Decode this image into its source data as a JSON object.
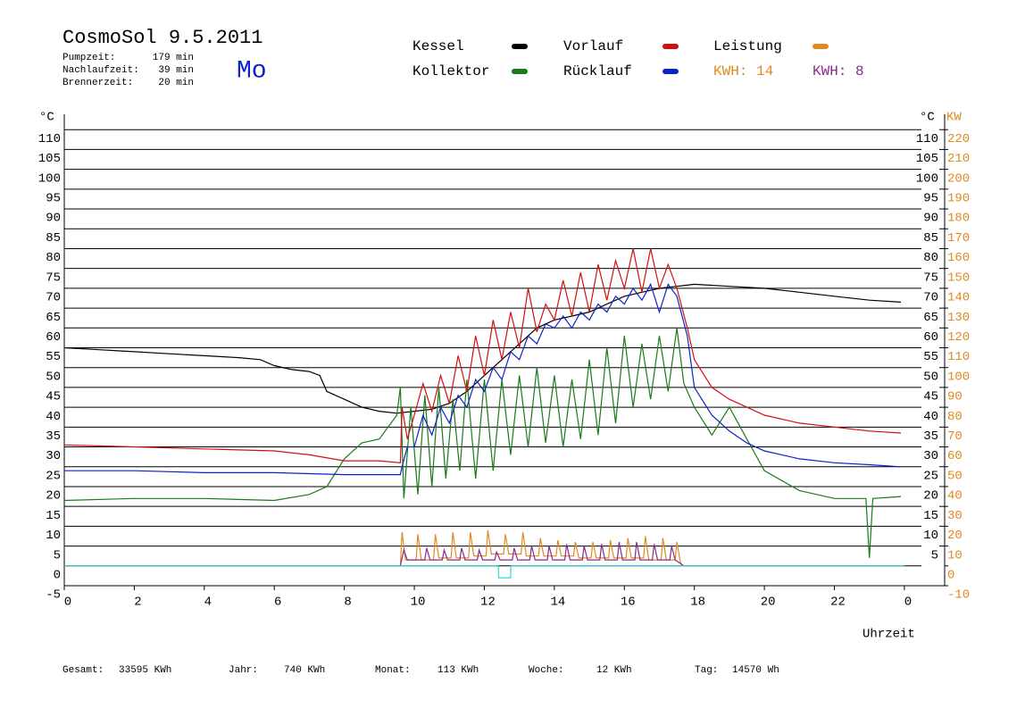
{
  "chart_data": {
    "type": "line",
    "title": "CosmoSol 9.5.2011",
    "day": "Mo",
    "info": [
      {
        "label": "Pumpzeit:",
        "value": "179 min"
      },
      {
        "label": "Nachlaufzeit:",
        "value": "39 min"
      },
      {
        "label": "Brennerzeit:",
        "value": "20 min"
      }
    ],
    "footer": [
      {
        "label": "Gesamt:",
        "value": "33595 KWh"
      },
      {
        "label": "Jahr:",
        "value": "740 KWh"
      },
      {
        "label": "Monat:",
        "value": "113 KWh"
      },
      {
        "label": "Woche:",
        "value": "12 KWh"
      },
      {
        "label": "Tag:",
        "value": "14570 Wh"
      }
    ],
    "annotations": [
      {
        "text": "KWH: 14",
        "color": "#e08a1e"
      },
      {
        "text": "KWH: 8",
        "color": "#8b2a8b"
      }
    ],
    "ylabel": "°C",
    "y2label": "KW",
    "xlabel": "Uhrzeit",
    "xlim": [
      0,
      25.15
    ],
    "xticks": [
      0,
      2,
      4,
      6,
      8,
      10,
      12,
      14,
      16,
      18,
      20,
      22,
      {
        "value": 24,
        "label": "0"
      }
    ],
    "ylim": [
      -5,
      115
    ],
    "yticks": [
      -5,
      0,
      5,
      10,
      15,
      20,
      25,
      30,
      35,
      40,
      45,
      50,
      55,
      60,
      65,
      70,
      75,
      80,
      85,
      90,
      95,
      100,
      105,
      110
    ],
    "yticks_right": [
      5,
      10,
      15,
      20,
      25,
      30,
      35,
      40,
      45,
      50,
      55,
      60,
      65,
      70,
      75,
      80,
      85,
      90,
      95,
      100,
      105,
      110
    ],
    "y2lim": [
      -10,
      230
    ],
    "y2ticks": [
      -10,
      0,
      10,
      20,
      30,
      40,
      50,
      60,
      70,
      80,
      90,
      100,
      110,
      120,
      130,
      140,
      150,
      160,
      170,
      180,
      190,
      200,
      210,
      220
    ],
    "y2color": "#e08a1e",
    "grid": true,
    "series": [
      {
        "name": "Kessel",
        "color": "#000000",
        "x": [
          0,
          1,
          2,
          3,
          4,
          5,
          5.6,
          6,
          6.5,
          7,
          7.3,
          7.5,
          8,
          8.5,
          9,
          9.5,
          10,
          10.5,
          11,
          11.5,
          12,
          12.5,
          13,
          13.5,
          14,
          14.5,
          15,
          15.5,
          16,
          16.5,
          17,
          17.5,
          18,
          19,
          20,
          21,
          22,
          23,
          23.9
        ],
        "values": [
          55,
          54.5,
          54,
          53.5,
          53,
          52.5,
          52,
          50.5,
          49.5,
          49,
          48,
          44,
          42,
          40,
          39,
          38.5,
          39,
          39.5,
          41,
          44,
          48,
          52,
          56,
          60,
          62,
          63,
          64,
          66,
          68,
          69,
          70,
          70.5,
          71,
          70.5,
          70,
          69,
          68,
          67,
          66.5
        ]
      },
      {
        "name": "Kollektor",
        "color": "#1a7a1a",
        "x": [
          0,
          2,
          4,
          6,
          7,
          7.5,
          8,
          8.5,
          9,
          9.5,
          9.6,
          9.7,
          9.9,
          10.1,
          10.3,
          10.5,
          10.7,
          10.9,
          11.1,
          11.3,
          11.5,
          11.75,
          12,
          12.25,
          12.5,
          12.75,
          13,
          13.25,
          13.5,
          13.75,
          14,
          14.25,
          14.5,
          14.75,
          15,
          15.25,
          15.5,
          15.75,
          16,
          16.25,
          16.5,
          16.75,
          17,
          17.25,
          17.5,
          17.7,
          18,
          18.5,
          19,
          19.5,
          20,
          21,
          22,
          22.9,
          23,
          23.1,
          23.9
        ],
        "values": [
          16.5,
          17,
          17,
          16.5,
          18,
          20,
          27,
          31,
          32,
          38,
          45,
          17,
          40,
          18,
          43,
          20,
          45,
          22,
          42,
          24,
          47,
          22,
          47,
          24,
          47,
          28,
          48,
          30,
          50,
          31,
          48,
          30,
          47,
          32,
          52,
          33,
          55,
          36,
          58,
          40,
          56,
          42,
          58,
          44,
          60,
          46,
          40,
          33,
          40,
          32,
          24,
          19,
          17,
          17,
          2,
          17,
          17.5
        ]
      },
      {
        "name": "Vorlauf",
        "color": "#d01010",
        "x": [
          0,
          2,
          4,
          6,
          7,
          8,
          9,
          9.6,
          9.65,
          9.8,
          10,
          10.25,
          10.5,
          10.75,
          11,
          11.25,
          11.5,
          11.75,
          12,
          12.25,
          12.5,
          12.75,
          13,
          13.25,
          13.5,
          13.75,
          14,
          14.25,
          14.5,
          14.75,
          15,
          15.25,
          15.5,
          15.75,
          16,
          16.25,
          16.5,
          16.75,
          17,
          17.25,
          17.5,
          17.8,
          18,
          18.5,
          19,
          19.5,
          20,
          21,
          22,
          23,
          23.9
        ],
        "values": [
          30.5,
          30,
          29.5,
          29,
          28,
          26.5,
          26.5,
          26,
          40,
          32,
          38,
          46,
          39,
          48,
          41,
          53,
          44,
          58,
          48,
          62,
          52,
          64,
          55,
          70,
          59,
          66,
          62,
          72,
          63,
          74,
          64,
          76,
          67,
          77,
          70,
          80,
          69,
          80,
          70,
          76,
          70,
          60,
          52,
          45,
          42,
          40,
          38,
          36,
          35,
          34,
          33.5
        ]
      },
      {
        "name": "Rücklauf",
        "color": "#1020c8",
        "x": [
          0,
          2,
          4,
          6,
          8,
          9.6,
          9.65,
          9.8,
          10,
          10.25,
          10.5,
          10.75,
          11,
          11.25,
          11.5,
          11.75,
          12,
          12.25,
          12.5,
          12.75,
          13,
          13.25,
          13.5,
          13.75,
          14,
          14.25,
          14.5,
          14.75,
          15,
          15.25,
          15.5,
          15.75,
          16,
          16.25,
          16.5,
          16.75,
          17,
          17.25,
          17.5,
          17.8,
          18,
          18.5,
          19,
          19.5,
          20,
          21,
          22,
          23,
          23.9
        ],
        "values": [
          24,
          24,
          23.5,
          23.5,
          23,
          23,
          25,
          30,
          30,
          38,
          33,
          40,
          36,
          43,
          40,
          47,
          44,
          50,
          47,
          54,
          52,
          58,
          56,
          61,
          60,
          63,
          60,
          64,
          62,
          66,
          64,
          68,
          66,
          70,
          67,
          71,
          64,
          71,
          68,
          58,
          45,
          38,
          34,
          31,
          29,
          27,
          26,
          25.5,
          25
        ]
      },
      {
        "name": "Leistung",
        "color": "#e08a1e",
        "axis": "y2",
        "x": [
          0,
          9.6,
          9.65,
          9.75,
          10.05,
          10.1,
          10.2,
          10.55,
          10.6,
          10.7,
          11.05,
          11.1,
          11.2,
          11.55,
          11.6,
          11.7,
          12.05,
          12.1,
          12.2,
          12.55,
          12.6,
          12.7,
          13.05,
          13.1,
          13.2,
          13.55,
          13.6,
          13.7,
          14.05,
          14.1,
          14.2,
          14.55,
          14.6,
          14.7,
          15.05,
          15.1,
          15.2,
          15.55,
          15.6,
          15.7,
          16.05,
          16.1,
          16.2,
          16.55,
          16.6,
          16.7,
          17.05,
          17.1,
          17.2,
          17.45,
          17.5,
          17.6,
          17.65,
          24
        ],
        "values": [
          0,
          0,
          17,
          3,
          3,
          16,
          3,
          3,
          16,
          4,
          4,
          17,
          4,
          4,
          17,
          5,
          5,
          18,
          6,
          6,
          16,
          6,
          6,
          17,
          5,
          5,
          14,
          5,
          5,
          13,
          5,
          5,
          12,
          4,
          4,
          12,
          4,
          4,
          13,
          4,
          4,
          14,
          4,
          4,
          15,
          3,
          3,
          14,
          3,
          3,
          12,
          2,
          0,
          0
        ]
      },
      {
        "color": "#8b2a8b",
        "axis": "y2",
        "x": [
          0,
          9.6,
          9.7,
          9.8,
          10.3,
          10.35,
          10.45,
          10.8,
          10.85,
          10.95,
          11.3,
          11.35,
          11.45,
          11.8,
          11.85,
          11.95,
          12.3,
          12.35,
          12.45,
          12.8,
          12.85,
          12.95,
          13.3,
          13.35,
          13.45,
          13.8,
          13.85,
          13.95,
          14.3,
          14.35,
          14.45,
          14.8,
          14.85,
          14.95,
          15.3,
          15.35,
          15.45,
          15.8,
          15.85,
          15.95,
          16.3,
          16.35,
          16.45,
          16.8,
          16.85,
          16.95,
          17.3,
          17.35,
          17.45,
          17.7,
          24
        ],
        "values": [
          0,
          0,
          8,
          3,
          3,
          9,
          3,
          3,
          8,
          3,
          3,
          9,
          3,
          3,
          8,
          3,
          3,
          7,
          3,
          3,
          9,
          3,
          3,
          10,
          3,
          3,
          10,
          3,
          3,
          11,
          3,
          3,
          10,
          3,
          3,
          11,
          3,
          3,
          12,
          3,
          3,
          12,
          3,
          3,
          11,
          3,
          3,
          10,
          3,
          0,
          0
        ]
      },
      {
        "color": "#30d8d8",
        "x": [
          0,
          12.4,
          12.41,
          12.75,
          12.76,
          24
        ],
        "values": [
          0,
          0,
          -3,
          -3,
          0,
          0
        ]
      }
    ]
  }
}
